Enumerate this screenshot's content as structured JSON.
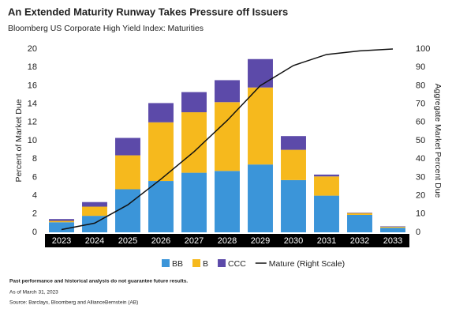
{
  "chart_data": {
    "type": "stacked-bar-line",
    "title": "An Extended Maturity Runway Takes Pressure off Issuers",
    "subtitle": "Bloomberg US Corporate High Yield Index: Maturities",
    "ylabel": "Percent of Market Due",
    "y2label": "Aggregate Market Percent Due",
    "categories": [
      "2023",
      "2024",
      "2025",
      "2026",
      "2027",
      "2028",
      "2029",
      "2030",
      "2031",
      "2032",
      "2033"
    ],
    "series": [
      {
        "name": "BB",
        "color": "#3b95d9",
        "values": [
          1.1,
          1.8,
          4.7,
          5.6,
          6.5,
          6.7,
          7.4,
          5.7,
          4.0,
          1.9,
          0.5
        ]
      },
      {
        "name": "B",
        "color": "#f6b91d",
        "values": [
          0.15,
          1.0,
          3.7,
          6.4,
          6.6,
          7.5,
          8.4,
          3.3,
          2.1,
          0.2,
          0.1
        ]
      },
      {
        "name": "CCC",
        "color": "#5c4aa9",
        "values": [
          0.2,
          0.5,
          1.9,
          2.1,
          2.2,
          2.4,
          3.1,
          1.5,
          0.2,
          0.05,
          0.05
        ]
      }
    ],
    "line": {
      "name": "Mature (Right Scale)",
      "color": "#111111",
      "axis": "y2",
      "values": [
        1.5,
        5,
        15,
        29,
        44,
        61,
        80,
        91,
        97,
        99,
        100
      ]
    },
    "ylim": [
      0,
      20
    ],
    "yticks": [
      0,
      2,
      4,
      6,
      8,
      10,
      12,
      14,
      16,
      18,
      20
    ],
    "y2lim": [
      0,
      100
    ],
    "y2ticks": [
      0,
      10,
      20,
      30,
      40,
      50,
      60,
      70,
      80,
      90,
      100
    ]
  },
  "footer": {
    "disclaimer": "Past performance and historical analysis do not guarantee future results.",
    "date": "As of March 31, 2023",
    "source": "Source: Barclays, Bloomberg and AllianceBernstein (AB)"
  }
}
